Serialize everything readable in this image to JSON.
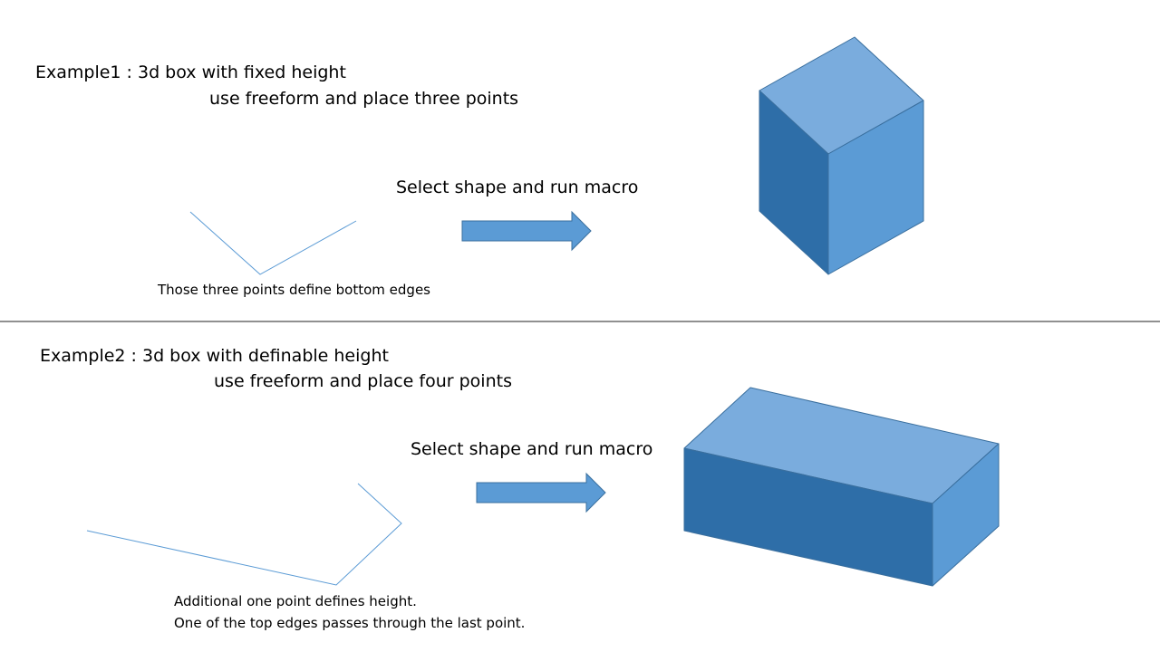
{
  "colors": {
    "accent": "#5b9bd5",
    "face_top": "#7aacdd",
    "face_side": "#5b9bd5",
    "face_dark": "#2e6ea8",
    "outline": "#3a6f9e",
    "divider": "#222222"
  },
  "example1": {
    "title": "Example1 : 3d box with fixed height",
    "instruction": "use freeform and place three points",
    "action_label": "Select shape and run macro",
    "caption": "Those three points define bottom edges"
  },
  "example2": {
    "title": "Example2 : 3d box with definable height",
    "instruction": "use freeform and place four points",
    "action_label": "Select shape and run macro",
    "caption_line1": "Additional one point defines height.",
    "caption_line2": "One of the top edges passes through the last point."
  }
}
